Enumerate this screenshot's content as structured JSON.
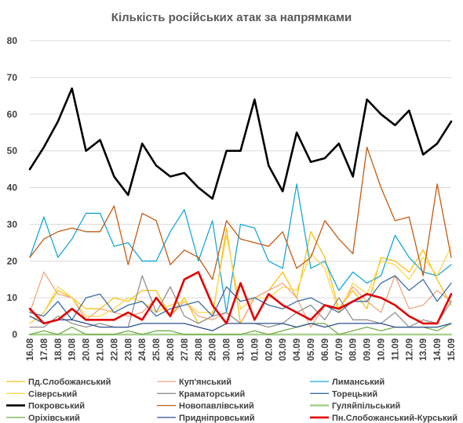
{
  "chart_data": {
    "type": "line",
    "title": "Кількість російських атак за напрямками",
    "xlabel": "",
    "ylabel": "",
    "ylim": [
      0,
      80
    ],
    "yticks": [
      0,
      10,
      20,
      30,
      40,
      50,
      60,
      70,
      80
    ],
    "grid": true,
    "legend_position": "bottom",
    "categories": [
      "16.08",
      "17.08",
      "18.08",
      "19.08",
      "20.08",
      "21.08",
      "22.08",
      "23.08",
      "24.08",
      "25.08",
      "26.08",
      "27.08",
      "28.08",
      "29.08",
      "30.08",
      "31.08",
      "01.09",
      "02.09",
      "03.09",
      "04.09",
      "05.09",
      "06.09",
      "07.09",
      "08.09",
      "09.09",
      "10.09",
      "11.09",
      "12.09",
      "13.09",
      "14.09",
      "15.09"
    ],
    "series": [
      {
        "name": "Пд.Слобожанський",
        "color": "#f5c216",
        "width": 1.3,
        "values": [
          3,
          6,
          12,
          10,
          7,
          7,
          10,
          9,
          12,
          12,
          5,
          10,
          3,
          5,
          29,
          3,
          10,
          12,
          17,
          10,
          28,
          21,
          7,
          12,
          7,
          21,
          20,
          17,
          23,
          15,
          8
        ]
      },
      {
        "name": "Куп'янський",
        "color": "#f4a582",
        "width": 1.3,
        "values": [
          6,
          17,
          11,
          10,
          4,
          7,
          6,
          5,
          6,
          10,
          5,
          9,
          5,
          4,
          6,
          3,
          10,
          12,
          14,
          10,
          2,
          8,
          7,
          13,
          9,
          6,
          16,
          7,
          8,
          12,
          9
        ]
      },
      {
        "name": "Лиманський",
        "color": "#1aa7d8",
        "width": 1.3,
        "values": [
          21,
          32,
          21,
          26,
          33,
          33,
          24,
          25,
          20,
          20,
          28,
          34,
          20,
          31,
          6,
          30,
          29,
          20,
          18,
          41,
          18,
          20,
          12,
          17,
          14,
          16,
          27,
          21,
          17,
          16,
          19
        ]
      },
      {
        "name": "Сіверський",
        "color": "#ffd54a",
        "width": 1.3,
        "values": [
          3,
          6,
          13,
          10,
          5,
          5,
          7,
          10,
          9,
          6,
          8,
          9,
          6,
          6,
          27,
          7,
          10,
          10,
          13,
          12,
          22,
          18,
          6,
          14,
          11,
          20,
          19,
          15,
          21,
          16,
          24
        ]
      },
      {
        "name": "Краматорський",
        "color": "#909090",
        "width": 1.3,
        "values": [
          2,
          2,
          5,
          3,
          2,
          3,
          2,
          2,
          16,
          6,
          13,
          5,
          3,
          5,
          6,
          3,
          3,
          2,
          3,
          6,
          8,
          4,
          10,
          4,
          4,
          3,
          6,
          2,
          4,
          3,
          9
        ]
      },
      {
        "name": "Торецький",
        "color": "#3a6ea5",
        "width": 1.3,
        "values": [
          6,
          5,
          9,
          4,
          10,
          11,
          6,
          8,
          9,
          5,
          7,
          8,
          9,
          5,
          13,
          9,
          10,
          8,
          7,
          9,
          10,
          8,
          6,
          9,
          9,
          14,
          16,
          12,
          15,
          9,
          14
        ]
      },
      {
        "name": "Покровський",
        "color": "#000000",
        "width": 2.6,
        "values": [
          45,
          51,
          58,
          67,
          50,
          53,
          43,
          38,
          52,
          46,
          43,
          44,
          40,
          37,
          50,
          50,
          64,
          46,
          39,
          55,
          47,
          48,
          52,
          43,
          64,
          60,
          57,
          61,
          49,
          52,
          58
        ]
      },
      {
        "name": "Новопавлівський",
        "color": "#c55a11",
        "width": 1.3,
        "values": [
          21,
          26,
          28,
          29,
          28,
          28,
          35,
          19,
          33,
          31,
          19,
          23,
          21,
          15,
          31,
          26,
          25,
          24,
          28,
          18,
          21,
          31,
          26,
          22,
          51,
          40,
          31,
          32,
          16,
          41,
          21
        ]
      },
      {
        "name": "Гуляйпільський",
        "color": "#a9d18e",
        "width": 2.6,
        "values": [
          0,
          0,
          0,
          0,
          0,
          0,
          0,
          0,
          0,
          0,
          0,
          0,
          0,
          0,
          0,
          0,
          0,
          0,
          0,
          0,
          0,
          0,
          0,
          0,
          0,
          0,
          0,
          0,
          0,
          0,
          0
        ]
      },
      {
        "name": "Оріхівський",
        "color": "#70ad47",
        "width": 1.3,
        "values": [
          0,
          1,
          0,
          2,
          0,
          0,
          0,
          1,
          0,
          1,
          1,
          0,
          0,
          0,
          0,
          0,
          1,
          0,
          1,
          2,
          3,
          3,
          0,
          1,
          2,
          1,
          2,
          2,
          2,
          1,
          3
        ]
      },
      {
        "name": "Придніпровський",
        "color": "#2f4f8f",
        "width": 1.3,
        "values": [
          5,
          3,
          4,
          4,
          3,
          2,
          2,
          2,
          3,
          3,
          3,
          3,
          2,
          1,
          3,
          3,
          3,
          3,
          3,
          2,
          3,
          2,
          3,
          3,
          3,
          3,
          2,
          2,
          2,
          2,
          3
        ]
      },
      {
        "name": "Пн.Слобожанський-Курський",
        "color": "#e00000",
        "width": 2.6,
        "values": [
          7,
          3,
          4,
          7,
          4,
          4,
          4,
          6,
          4,
          10,
          5,
          15,
          17,
          8,
          3,
          14,
          4,
          11,
          8,
          6,
          4,
          8,
          7,
          9,
          11,
          10,
          8,
          5,
          3,
          3,
          11
        ]
      }
    ]
  }
}
